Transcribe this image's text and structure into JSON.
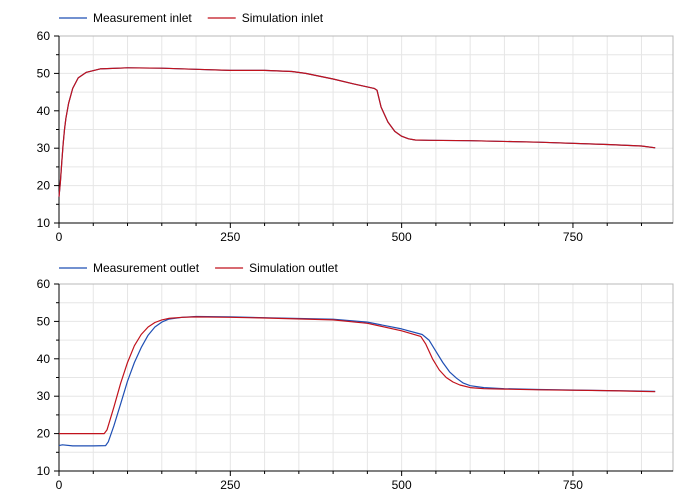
{
  "colors": {
    "measurement": "#1f4fb4",
    "simulation": "#c1121c",
    "grid": "#e6e6e6",
    "axis": "#000000"
  },
  "chart_data": [
    {
      "type": "line",
      "title": "",
      "xlabel": "",
      "ylabel": "",
      "xlim": [
        0,
        896
      ],
      "ylim": [
        10,
        60
      ],
      "xticks": [
        0,
        250,
        500,
        750
      ],
      "yticks": [
        10,
        20,
        30,
        40,
        50,
        60
      ],
      "grid": true,
      "legend_position": "top-left",
      "series": [
        {
          "name": "Measurement inlet",
          "color_key": "measurement",
          "x": [
            0,
            2,
            4,
            6,
            8,
            10,
            14,
            20,
            28,
            40,
            60,
            100,
            150,
            200,
            250,
            300,
            340,
            360,
            400,
            430,
            460,
            464,
            470,
            480,
            490,
            500,
            510,
            520,
            540,
            600,
            700,
            800,
            850,
            870
          ],
          "y": [
            17,
            21,
            26,
            31,
            35,
            38,
            42,
            46,
            48.8,
            50.3,
            51.2,
            51.5,
            51.4,
            51.1,
            50.8,
            50.8,
            50.5,
            50,
            48.5,
            47.2,
            46,
            45.5,
            41,
            37,
            34.5,
            33.2,
            32.5,
            32.2,
            32.1,
            32,
            31.6,
            31,
            30.6,
            30.1
          ]
        },
        {
          "name": "Simulation inlet",
          "color_key": "simulation",
          "x": [
            0,
            2,
            4,
            6,
            8,
            10,
            14,
            20,
            28,
            40,
            60,
            100,
            150,
            200,
            250,
            300,
            340,
            360,
            400,
            430,
            460,
            464,
            470,
            480,
            490,
            500,
            510,
            520,
            540,
            600,
            700,
            800,
            850,
            870
          ],
          "y": [
            17,
            21,
            26,
            31,
            35,
            38,
            42,
            46,
            48.8,
            50.3,
            51.2,
            51.5,
            51.4,
            51.1,
            50.8,
            50.8,
            50.5,
            50,
            48.5,
            47.2,
            46,
            45.5,
            41,
            37,
            34.5,
            33.2,
            32.5,
            32.2,
            32.1,
            32,
            31.6,
            31,
            30.6,
            30.1
          ]
        }
      ]
    },
    {
      "type": "line",
      "title": "",
      "xlabel": "",
      "ylabel": "",
      "xlim": [
        0,
        896
      ],
      "ylim": [
        10,
        60
      ],
      "xticks": [
        0,
        250,
        500,
        750
      ],
      "yticks": [
        10,
        20,
        30,
        40,
        50,
        60
      ],
      "grid": true,
      "legend_position": "top-left",
      "series": [
        {
          "name": "Measurement outlet",
          "color_key": "measurement",
          "x": [
            0,
            5,
            20,
            50,
            68,
            72,
            80,
            90,
            100,
            110,
            120,
            130,
            140,
            150,
            160,
            180,
            200,
            250,
            300,
            400,
            450,
            500,
            530,
            540,
            550,
            560,
            570,
            580,
            590,
            600,
            620,
            650,
            700,
            800,
            870
          ],
          "y": [
            16.8,
            17,
            16.7,
            16.7,
            16.8,
            17.8,
            22,
            28,
            34,
            39,
            43,
            46.3,
            48.5,
            49.8,
            50.6,
            51.1,
            51.3,
            51.2,
            51,
            50.6,
            49.8,
            48,
            46.5,
            45,
            42,
            39,
            36.5,
            34.8,
            33.5,
            32.8,
            32.3,
            32,
            31.8,
            31.5,
            31.3
          ]
        },
        {
          "name": "Simulation outlet",
          "color_key": "simulation",
          "x": [
            0,
            5,
            20,
            50,
            66,
            70,
            80,
            90,
            100,
            110,
            120,
            130,
            140,
            150,
            160,
            180,
            200,
            250,
            300,
            400,
            450,
            500,
            528,
            535,
            545,
            555,
            565,
            575,
            585,
            600,
            620,
            650,
            700,
            800,
            870
          ],
          "y": [
            20,
            20,
            20,
            20,
            20,
            21,
            27,
            33.5,
            39,
            43.5,
            46.5,
            48.5,
            49.7,
            50.4,
            50.8,
            51.1,
            51.2,
            51.1,
            50.9,
            50.4,
            49.5,
            47.5,
            46,
            44,
            40,
            37,
            35,
            33.8,
            33,
            32.3,
            32,
            31.9,
            31.7,
            31.5,
            31.2
          ]
        }
      ]
    }
  ]
}
